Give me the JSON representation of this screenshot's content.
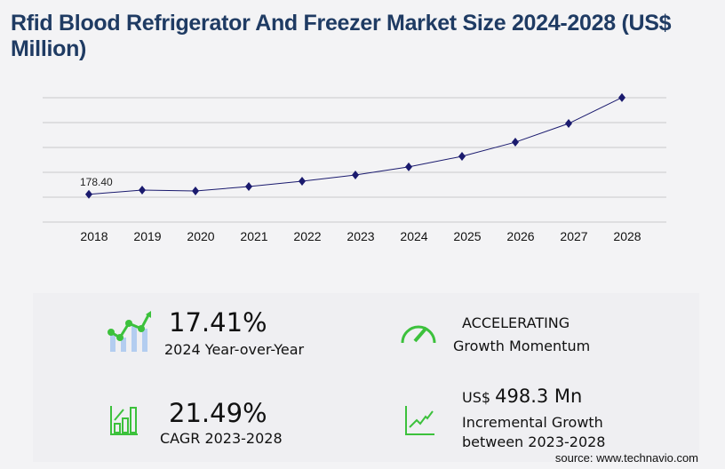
{
  "title": "Rfid Blood Refrigerator And Freezer Market Size 2024-2028 (US$ Million)",
  "chart_data": {
    "type": "line",
    "title": "Rfid Blood Refrigerator And Freezer Market Size 2024-2028 (US$ Million)",
    "categories": [
      "2018",
      "2019",
      "2020",
      "2021",
      "2022",
      "2023",
      "2024",
      "2025",
      "2026",
      "2027",
      "2028"
    ],
    "series": [
      {
        "values": [
          178.4,
          205.7,
          200.0,
          228.6,
          262.9,
          302.6,
          355.3,
          423.0,
          514.0,
          634.0,
          800.9
        ]
      }
    ],
    "data_labels": {
      "0": "178.40"
    },
    "ylim": [
      0,
      800
    ],
    "grid": true,
    "line_color": "#1a1a6e"
  },
  "stats": {
    "yoy_value": "17.41%",
    "yoy_label": "2024 Year-over-Year",
    "momentum_value": "ACCELERATING",
    "momentum_label": "Growth Momentum",
    "cagr_value": "21.49%",
    "cagr_label": "CAGR 2023-2028",
    "incr_prefix": "US$",
    "incr_value": "498.3 Mn",
    "incr_label_1": "Incremental Growth",
    "incr_label_2": "between 2023-2028"
  },
  "source": "source: www.technavio.com",
  "accent_color": "#3cc13c"
}
